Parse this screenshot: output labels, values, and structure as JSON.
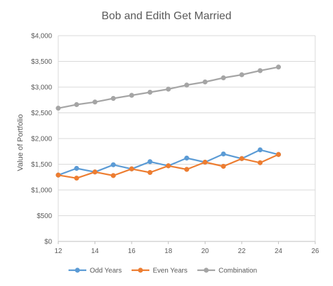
{
  "chart_data": {
    "type": "line",
    "title": "Bob and Edith Get Married",
    "xlabel": "",
    "ylabel": "Value of Portfolio",
    "xlim": [
      12,
      26
    ],
    "ylim": [
      0,
      4000
    ],
    "x_ticks": [
      12,
      14,
      16,
      18,
      20,
      22,
      24,
      26
    ],
    "y_ticks": [
      0,
      500,
      1000,
      1500,
      2000,
      2500,
      3000,
      3500,
      4000
    ],
    "y_tick_labels": [
      "$0",
      "$500",
      "$1,000",
      "$1,500",
      "$2,000",
      "$2,500",
      "$3,000",
      "$3,500",
      "$4,000"
    ],
    "grid": "horizontal",
    "legend_position": "bottom",
    "series": [
      {
        "name": "Odd Years",
        "color": "#5B9BD5",
        "x": [
          12,
          13,
          14,
          15,
          16,
          17,
          18,
          19,
          20,
          21,
          22,
          23,
          24
        ],
        "values": [
          1290,
          1420,
          1350,
          1490,
          1410,
          1550,
          1470,
          1620,
          1540,
          1700,
          1610,
          1780,
          1690
        ]
      },
      {
        "name": "Even Years",
        "color": "#ED7D31",
        "x": [
          12,
          13,
          14,
          15,
          16,
          17,
          18,
          19,
          20,
          21,
          22,
          23,
          24
        ],
        "values": [
          1290,
          1230,
          1350,
          1280,
          1410,
          1340,
          1470,
          1400,
          1540,
          1460,
          1610,
          1530,
          1690
        ]
      },
      {
        "name": "Combination",
        "color": "#A5A5A5",
        "x": [
          12,
          13,
          14,
          15,
          16,
          17,
          18,
          19,
          20,
          21,
          22,
          23,
          24
        ],
        "values": [
          2590,
          2660,
          2710,
          2780,
          2840,
          2900,
          2960,
          3040,
          3100,
          3180,
          3240,
          3320,
          3390
        ]
      }
    ]
  }
}
